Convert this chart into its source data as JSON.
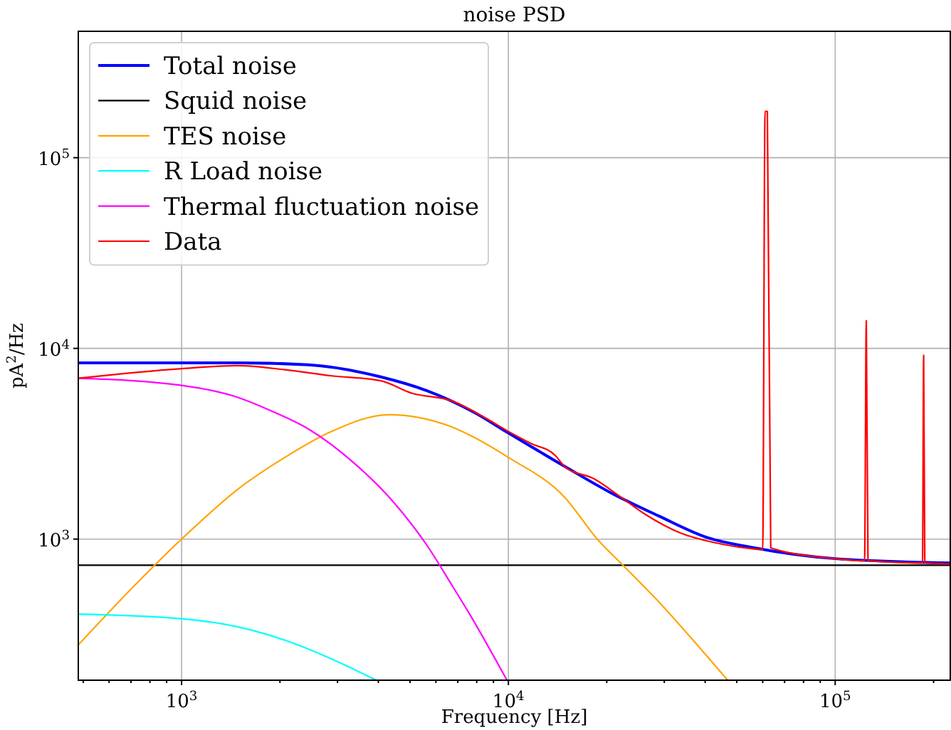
{
  "chart_data": {
    "type": "line",
    "title": "noise PSD",
    "xlabel": "Frequency [Hz]",
    "ylabel": "pA$^{2}$/Hz",
    "log": "xy",
    "grid": true,
    "legend": "top left",
    "line_style": "solid",
    "xlim": [
      483,
      225000
    ],
    "ylim": [
      182,
      460000
    ],
    "xticks": [
      {
        "value": 500,
        "label": null
      },
      {
        "value": 600,
        "label": null
      },
      {
        "value": 700,
        "label": null
      },
      {
        "value": 800,
        "label": null
      },
      {
        "value": 900,
        "label": null
      },
      {
        "value": 1000,
        "label": "10$^{3}$"
      },
      {
        "value": 2000,
        "label": null
      },
      {
        "value": 3000,
        "label": null
      },
      {
        "value": 4000,
        "label": null
      },
      {
        "value": 5000,
        "label": null
      },
      {
        "value": 6000,
        "label": null
      },
      {
        "value": 7000,
        "label": null
      },
      {
        "value": 8000,
        "label": null
      },
      {
        "value": 9000,
        "label": null
      },
      {
        "value": 10000,
        "label": "10$^{4}$"
      },
      {
        "value": 20000,
        "label": null
      },
      {
        "value": 30000,
        "label": null
      },
      {
        "value": 40000,
        "label": null
      },
      {
        "value": 50000,
        "label": null
      },
      {
        "value": 60000,
        "label": null
      },
      {
        "value": 70000,
        "label": null
      },
      {
        "value": 80000,
        "label": null
      },
      {
        "value": 90000,
        "label": null
      },
      {
        "value": 100000,
        "label": "10$^{5}$"
      },
      {
        "value": 200000,
        "label": null
      }
    ],
    "yticks": [
      {
        "value": 1000,
        "label": "10$^{3}$"
      },
      {
        "value": 10000,
        "label": "10$^{4}$"
      },
      {
        "value": 100000,
        "label": "10$^{5}$"
      }
    ],
    "series": [
      {
        "name": "Total noise",
        "color": "#0000ff",
        "x": [
          483,
          1000,
          1500,
          2450,
          4050,
          5630,
          7800,
          10000,
          14900,
          20700,
          28900,
          40500,
          56500,
          100000,
          225000
        ],
        "values": [
          8400,
          8400,
          8400,
          8200,
          7100,
          6000,
          4650,
          3600,
          2400,
          1740,
          1320,
          1020,
          900,
          790,
          750
        ]
      },
      {
        "name": "Squid noise",
        "color": "#000000",
        "x": [
          483,
          225000
        ],
        "values": [
          730,
          730
        ]
      },
      {
        "name": "TES noise",
        "color": "#ffa500",
        "x": [
          483,
          1000,
          1480,
          2070,
          2880,
          4300,
          6660,
          7610,
          10000,
          14900,
          18700,
          22400,
          28900,
          37800,
          46900
        ],
        "values": [
          279,
          1000,
          1815,
          2680,
          3670,
          4490,
          3890,
          3510,
          2680,
          1650,
          1000,
          730,
          467,
          279,
          182
        ]
      },
      {
        "name": "R Load noise",
        "color": "#00ffff",
        "x": [
          483,
          1000,
          1480,
          2070,
          2880,
          3940
        ],
        "values": [
          404,
          382,
          347,
          295,
          235,
          182
        ]
      },
      {
        "name": "Thermal fluctuation noise",
        "color": "#ff00ff",
        "x": [
          483,
          1000,
          1480,
          1930,
          2450,
          3420,
          4470,
          5630,
          6660,
          7610,
          9900
        ],
        "values": [
          6970,
          6400,
          5550,
          4610,
          3770,
          2450,
          1550,
          929,
          587,
          404,
          182
        ]
      },
      {
        "name": "Data",
        "color": "#ff0000",
        "x": [
          483,
          1000,
          1480,
          2070,
          2880,
          4050,
          5100,
          6660,
          8400,
          10000,
          11700,
          13900,
          14900,
          18300,
          22200,
          26200,
          33900,
          43100,
          56500,
          60000,
          61000,
          62000,
          63500,
          100000,
          123000,
          124500,
          126000,
          185000,
          186500,
          188000,
          225000
        ],
        "values": [
          6970,
          7830,
          8120,
          7730,
          7180,
          6780,
          5800,
          5330,
          4370,
          3670,
          3180,
          2750,
          2390,
          2070,
          1650,
          1350,
          1070,
          955,
          887,
          880,
          175000,
          175000,
          900,
          790,
          770,
          14000,
          770,
          750,
          9200,
          750,
          740
        ]
      }
    ]
  }
}
